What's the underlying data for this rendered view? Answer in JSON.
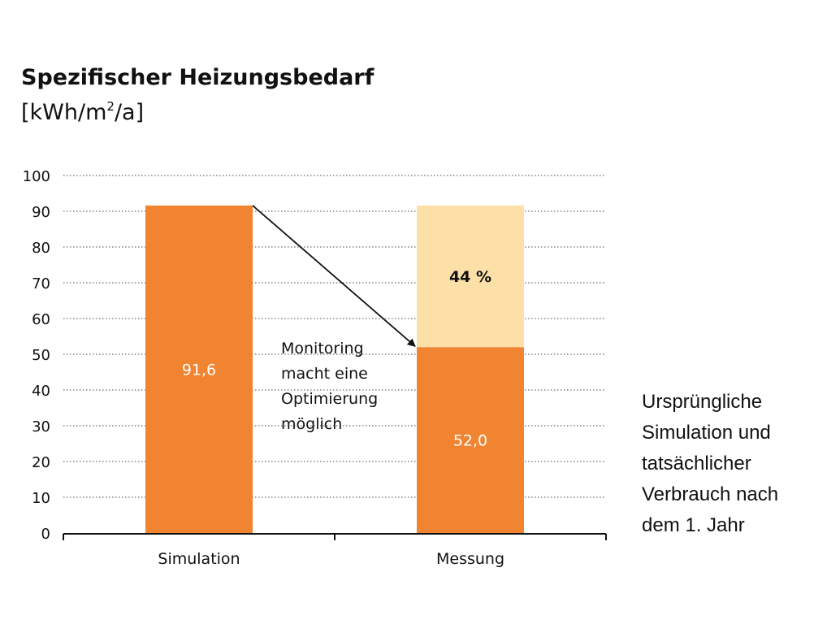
{
  "chart_data": {
    "type": "bar",
    "title": "Spezifischer Heizungsbedarf",
    "unit": {
      "prefix": "[kWh/m",
      "sup": "2",
      "suffix": "/a]"
    },
    "categories": [
      "Simulation",
      "Messung"
    ],
    "bars": [
      {
        "category": "Simulation",
        "segments": [
          {
            "value": 91.6,
            "label": "91,6",
            "color": "#F08431"
          }
        ]
      },
      {
        "category": "Messung",
        "segments": [
          {
            "value": 52.0,
            "label": "52,0",
            "color": "#F08431"
          },
          {
            "value": 39.6,
            "label": "44 %",
            "color": "#FDDFA8"
          }
        ]
      }
    ],
    "yticks": [
      0,
      10,
      20,
      30,
      40,
      50,
      60,
      70,
      80,
      90,
      100
    ],
    "ylim": [
      0,
      100
    ],
    "grid": true,
    "annotation": {
      "lines": [
        "Monitoring",
        "macht eine",
        "Optimierung",
        "möglich"
      ]
    },
    "caption": [
      "Ursprüngliche",
      "Simulation und",
      "tatsächlicher",
      "Verbrauch nach",
      "dem 1. Jahr"
    ]
  }
}
